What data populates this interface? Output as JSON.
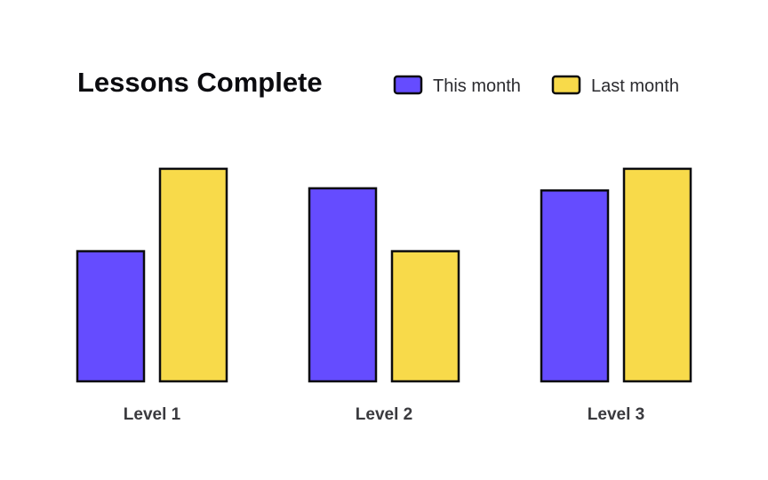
{
  "chart_data": {
    "type": "bar",
    "title": "Lessons Complete",
    "categories": [
      "Level 1",
      "Level 2",
      "Level 3"
    ],
    "series": [
      {
        "name": "This month",
        "values": [
          60,
          89,
          88
        ],
        "color": "#654cff"
      },
      {
        "name": "Last month",
        "values": [
          98,
          60,
          98
        ],
        "color": "#f8da4a"
      }
    ],
    "xlabel": "",
    "ylabel": "",
    "ylim": [
      0,
      100
    ],
    "grid": false,
    "legend_placement": "top-right",
    "bar_outline_color": "#0b0b0f"
  }
}
